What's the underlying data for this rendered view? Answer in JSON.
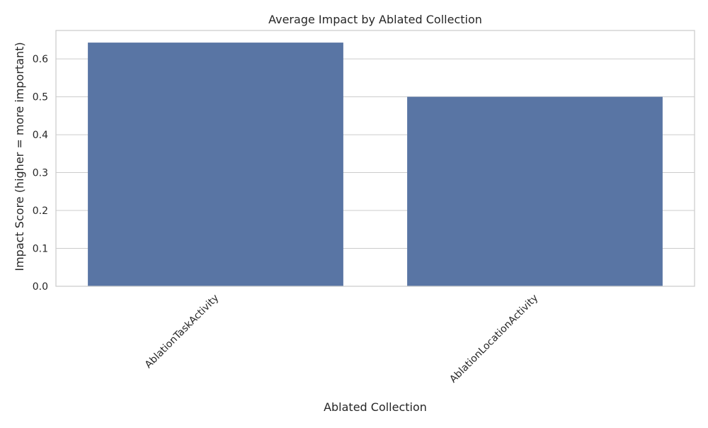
{
  "chart_data": {
    "type": "bar",
    "title": "Average Impact by Ablated Collection",
    "xlabel": "Ablated Collection",
    "ylabel": "Impact Score (higher = more important)",
    "categories": [
      "AblationTaskActivity",
      "AblationLocationActivity"
    ],
    "values": [
      0.643,
      0.5
    ],
    "ylim": [
      0,
      0.675
    ],
    "yticks": [
      0.0,
      0.1,
      0.2,
      0.3,
      0.4,
      0.5,
      0.6
    ],
    "ytick_labels": [
      "0.0",
      "0.1",
      "0.2",
      "0.3",
      "0.4",
      "0.5",
      "0.6"
    ],
    "grid": true,
    "xtick_rotation": "45 degrees",
    "colors": {
      "bar": "#5975a4",
      "grid": "#cccccc",
      "axes_edge": "#cccccc",
      "text": "#262626"
    }
  }
}
